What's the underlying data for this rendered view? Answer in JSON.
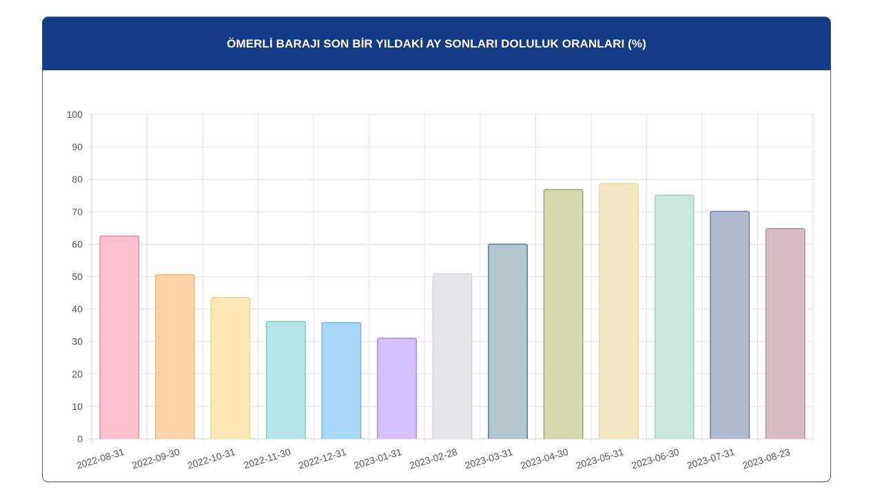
{
  "header": {
    "title": "ÖMERLİ BARAJI SON BİR YILDAKİ AY SONLARI DOLULUK ORANLARI (%)"
  },
  "colors": {
    "header_bg": "#123a85",
    "header_text": "#ffffff",
    "grid": "#e2e2e2",
    "axis": "#cfcfcf",
    "tick_text": "#555555"
  },
  "chart_data": {
    "type": "bar",
    "title": "ÖMERLİ BARAJI SON BİR YILDAKİ AY SONLARI DOLULUK ORANLARI (%)",
    "xlabel": "",
    "ylabel": "",
    "ylim": [
      0,
      100
    ],
    "yticks": [
      0,
      10,
      20,
      30,
      40,
      50,
      60,
      70,
      80,
      90,
      100
    ],
    "grid": true,
    "legend": "none",
    "categories": [
      "2022-08-31",
      "2022-09-30",
      "2022-10-31",
      "2022-11-30",
      "2022-12-31",
      "2023-01-31",
      "2023-02-28",
      "2023-03-31",
      "2023-04-30",
      "2023-05-31",
      "2023-06-30",
      "2023-07-31",
      "2023-08-23"
    ],
    "values": [
      62.5,
      50.6,
      43.6,
      36.2,
      35.8,
      31.0,
      50.8,
      60.0,
      76.8,
      78.6,
      75.1,
      70.1,
      64.8
    ],
    "bar_fill_colors": [
      "#ffc0cf",
      "#fed3a8",
      "#fde8b6",
      "#b6e6e6",
      "#a8d6f6",
      "#d4c0fe",
      "#e5e6e8",
      "#b1c7cb",
      "#d3d9ac",
      "#f4e7c4",
      "#c9e7dd",
      "#b0bcce",
      "#d7bcc2"
    ],
    "bar_border_colors": [
      "#f08aa3",
      "#f5b878",
      "#f0d48f",
      "#78cdcd",
      "#6cb5e6",
      "#a98af0",
      "#d6d7da",
      "#5b7f88",
      "#9aa75c",
      "#ead8a4",
      "#9fd1bf",
      "#6d7f9c",
      "#b78f99"
    ]
  }
}
